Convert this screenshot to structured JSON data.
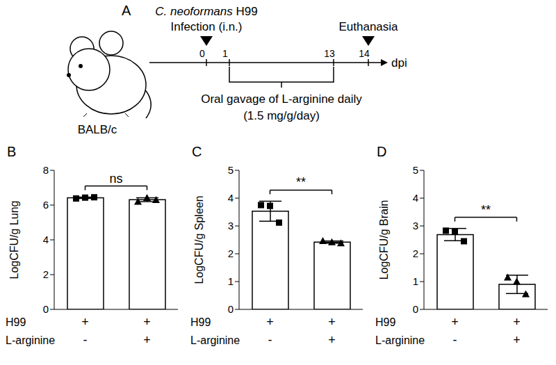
{
  "panel_a": {
    "label": "A",
    "pathogen": "C. neoformans H99",
    "infection": "Infection (i.n.)",
    "endpoint": "Euthanasia",
    "mouse_strain": "BALB/c",
    "axis_label": "dpi",
    "timeline_ticks": [
      0,
      1,
      13,
      14
    ],
    "treatment": "Oral gavage of L-arginine daily",
    "dose": "(1.5 mg/g/day)"
  },
  "chart_data": [
    {
      "panel": "B",
      "type": "bar",
      "categories": [
        null,
        null
      ],
      "values": [
        6.42,
        6.31
      ],
      "error": [
        0.04,
        0.11
      ],
      "color": "#ffffff",
      "points": [
        {
          "marker": "square",
          "color": "#000000",
          "values": [
            6.38,
            6.43,
            6.45
          ]
        },
        {
          "marker": "triangle",
          "color": "#000000",
          "values": [
            6.2,
            6.42,
            6.3
          ]
        }
      ],
      "y_label": "LogCFU/g Lung",
      "ylim": [
        0,
        8
      ],
      "yticks": [
        0,
        2,
        4,
        6,
        8
      ],
      "significance": "ns",
      "condition_table": {
        "rows": [
          "H99",
          "L-arginine"
        ],
        "cells": [
          [
            "+",
            "+"
          ],
          [
            "-",
            "+"
          ]
        ]
      }
    },
    {
      "panel": "C",
      "type": "bar",
      "categories": [
        null,
        null
      ],
      "values": [
        3.53,
        2.42
      ],
      "error": [
        0.36,
        0.04
      ],
      "color": "#ffffff",
      "points": [
        {
          "marker": "square",
          "color": "#000000",
          "values": [
            3.75,
            3.72,
            3.12
          ]
        },
        {
          "marker": "triangle",
          "color": "#000000",
          "values": [
            2.46,
            2.42,
            2.38
          ]
        }
      ],
      "y_label": "LogCFU/g Spleen",
      "ylim": [
        0,
        5
      ],
      "yticks": [
        0,
        1,
        2,
        3,
        4,
        5
      ],
      "significance": "**",
      "condition_table": {
        "rows": [
          "H99",
          "L-arginine"
        ],
        "cells": [
          [
            "+",
            "+"
          ],
          [
            "-",
            "+"
          ]
        ]
      }
    },
    {
      "panel": "D",
      "type": "bar",
      "categories": [
        null,
        null
      ],
      "values": [
        2.69,
        0.9
      ],
      "error": [
        0.22,
        0.33
      ],
      "color": "#ffffff",
      "points": [
        {
          "marker": "square",
          "color": "#000000",
          "values": [
            2.83,
            2.8,
            2.45
          ]
        },
        {
          "marker": "triangle",
          "color": "#000000",
          "values": [
            1.15,
            1.0,
            0.55
          ]
        }
      ],
      "y_label": "LogCFU/g Brain",
      "ylim": [
        0,
        5
      ],
      "yticks": [
        0,
        1,
        2,
        3,
        4,
        5
      ],
      "significance": "**",
      "condition_table": {
        "rows": [
          "H99",
          "L-arginine"
        ],
        "cells": [
          [
            "+",
            "+"
          ],
          [
            "-",
            "+"
          ]
        ]
      }
    }
  ]
}
